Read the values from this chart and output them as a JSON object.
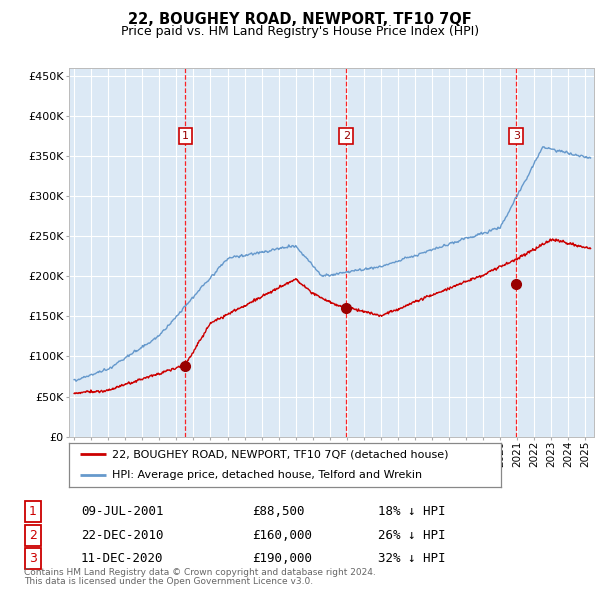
{
  "title": "22, BOUGHEY ROAD, NEWPORT, TF10 7QF",
  "subtitle": "Price paid vs. HM Land Registry's House Price Index (HPI)",
  "plot_bg_color": "#dce9f5",
  "hpi_color": "#6699cc",
  "price_color": "#cc0000",
  "marker_color": "#990000",
  "ylim": [
    0,
    460000
  ],
  "yticks": [
    0,
    50000,
    100000,
    150000,
    200000,
    250000,
    300000,
    350000,
    400000,
    450000
  ],
  "sale_events": [
    {
      "label": "1",
      "date_str": "09-JUL-2001",
      "year": 2001.53,
      "price": 88500,
      "pct": "18%",
      "direction": "↓"
    },
    {
      "label": "2",
      "date_str": "22-DEC-2010",
      "year": 2010.97,
      "price": 160000,
      "pct": "26%",
      "direction": "↓"
    },
    {
      "label": "3",
      "date_str": "11-DEC-2020",
      "year": 2020.94,
      "price": 190000,
      "pct": "32%",
      "direction": "↓"
    }
  ],
  "legend_line1": "22, BOUGHEY ROAD, NEWPORT, TF10 7QF (detached house)",
  "legend_line2": "HPI: Average price, detached house, Telford and Wrekin",
  "footer1": "Contains HM Land Registry data © Crown copyright and database right 2024.",
  "footer2": "This data is licensed under the Open Government Licence v3.0.",
  "xlim_start": 1994.7,
  "xlim_end": 2025.5
}
